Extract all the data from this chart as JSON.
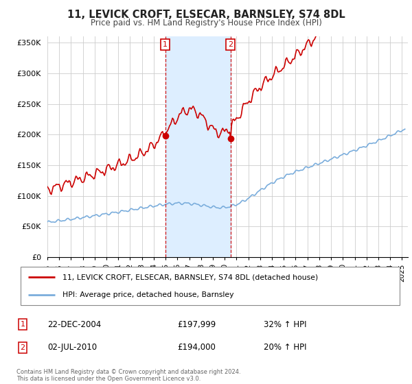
{
  "title": "11, LEVICK CROFT, ELSECAR, BARNSLEY, S74 8DL",
  "subtitle": "Price paid vs. HM Land Registry's House Price Index (HPI)",
  "ylim": [
    0,
    360000
  ],
  "yticks": [
    0,
    50000,
    100000,
    150000,
    200000,
    250000,
    300000,
    350000
  ],
  "ytick_labels": [
    "£0",
    "£50K",
    "£100K",
    "£150K",
    "£200K",
    "£250K",
    "£300K",
    "£350K"
  ],
  "xlim_start": 1995.0,
  "xlim_end": 2025.5,
  "sale1_date": 2004.97,
  "sale1_price": 197999,
  "sale2_date": 2010.5,
  "sale2_price": 194000,
  "red_color": "#cc0000",
  "blue_color": "#7aaddc",
  "shade_color": "#ddeeff",
  "legend_label_red": "11, LEVICK CROFT, ELSECAR, BARNSLEY, S74 8DL (detached house)",
  "legend_label_blue": "HPI: Average price, detached house, Barnsley",
  "footer1": "Contains HM Land Registry data © Crown copyright and database right 2024.",
  "footer2": "This data is licensed under the Open Government Licence v3.0.",
  "background_color": "#ffffff",
  "grid_color": "#cccccc"
}
